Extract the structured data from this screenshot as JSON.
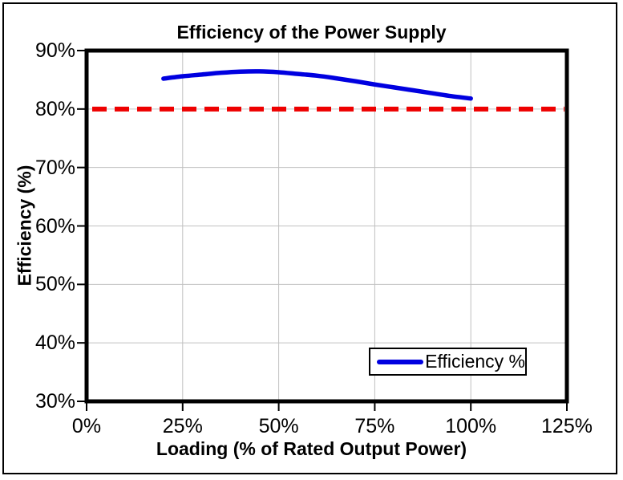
{
  "chart": {
    "title": "Efficiency of the Power Supply",
    "x_axis": {
      "title": "Loading (% of Rated Output Power)"
    },
    "y_axis": {
      "title": "Efficiency (%)"
    },
    "legend": {
      "items": [
        {
          "label": "Efficiency %",
          "color": "#0000e0"
        }
      ]
    }
  },
  "chart_data": {
    "type": "line",
    "title": "Efficiency of the Power Supply",
    "xlabel": "Loading (% of Rated Output Power)",
    "ylabel": "Efficiency (%)",
    "xlim": [
      0,
      125
    ],
    "ylim": [
      30,
      90
    ],
    "x_ticks": [
      0,
      25,
      50,
      75,
      100,
      125
    ],
    "x_tick_labels": [
      "0%",
      "25%",
      "50%",
      "75%",
      "100%",
      "125%"
    ],
    "y_ticks": [
      30,
      40,
      50,
      60,
      70,
      80,
      90
    ],
    "y_tick_labels": [
      "30%",
      "40%",
      "50%",
      "60%",
      "70%",
      "80%",
      "90%"
    ],
    "grid": true,
    "legend_position": "inside-bottom-right",
    "series": [
      {
        "name": "Efficiency %",
        "color": "#0000e0",
        "style": "solid",
        "smooth": true,
        "line_width": 5.5,
        "x": [
          20,
          25,
          30,
          35,
          40,
          45,
          50,
          55,
          60,
          65,
          70,
          75,
          80,
          85,
          90,
          95,
          100
        ],
        "y": [
          85.2,
          85.6,
          85.9,
          86.2,
          86.4,
          86.45,
          86.3,
          86.0,
          85.7,
          85.25,
          84.75,
          84.2,
          83.7,
          83.2,
          82.7,
          82.2,
          81.8
        ]
      }
    ],
    "reference_lines": [
      {
        "y": 80,
        "color": "#ee0000",
        "style": "dashed",
        "line_width": 6
      }
    ],
    "colors": {
      "grid": "#c0c0c0",
      "plot_border": "#000000",
      "background": "#ffffff",
      "tick": "#000000"
    }
  }
}
